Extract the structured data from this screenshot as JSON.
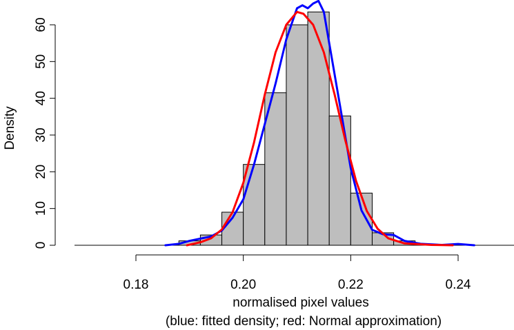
{
  "chart_data": {
    "type": "histogram",
    "xlabel": "normalised pixel values",
    "subtitle": "(blue: fitted density; red: Normal approximation)",
    "ylabel": "Density",
    "xlim": [
      0.17,
      0.25
    ],
    "ylim": [
      0,
      65
    ],
    "x_ticks": [
      {
        "value": 0.18,
        "label": "0.18"
      },
      {
        "value": 0.2,
        "label": "0.20"
      },
      {
        "value": 0.22,
        "label": "0.22"
      },
      {
        "value": 0.24,
        "label": "0.24"
      }
    ],
    "y_ticks": [
      {
        "value": 0,
        "label": "0"
      },
      {
        "value": 10,
        "label": "10"
      },
      {
        "value": 20,
        "label": "20"
      },
      {
        "value": 30,
        "label": "30"
      },
      {
        "value": 40,
        "label": "40"
      },
      {
        "value": 50,
        "label": "50"
      },
      {
        "value": 60,
        "label": "60"
      }
    ],
    "bins": [
      {
        "x0": 0.188,
        "x1": 0.192,
        "density": 1.2
      },
      {
        "x0": 0.192,
        "x1": 0.196,
        "density": 2.8
      },
      {
        "x0": 0.196,
        "x1": 0.2,
        "density": 9.0
      },
      {
        "x0": 0.2,
        "x1": 0.204,
        "density": 22.0
      },
      {
        "x0": 0.204,
        "x1": 0.208,
        "density": 41.5
      },
      {
        "x0": 0.208,
        "x1": 0.212,
        "density": 60.0
      },
      {
        "x0": 0.212,
        "x1": 0.216,
        "density": 63.5
      },
      {
        "x0": 0.216,
        "x1": 0.22,
        "density": 35.2
      },
      {
        "x0": 0.22,
        "x1": 0.224,
        "density": 14.2
      },
      {
        "x0": 0.224,
        "x1": 0.228,
        "density": 3.4
      },
      {
        "x0": 0.228,
        "x1": 0.232,
        "density": 1.2
      }
    ],
    "series": [
      {
        "kind": "fitted-density",
        "color": "#0000ff",
        "points": [
          [
            0.1855,
            0.0
          ],
          [
            0.188,
            0.4
          ],
          [
            0.19,
            1.2
          ],
          [
            0.192,
            1.8
          ],
          [
            0.194,
            2.4
          ],
          [
            0.196,
            4.0
          ],
          [
            0.198,
            7.5
          ],
          [
            0.2,
            12.5
          ],
          [
            0.202,
            22.0
          ],
          [
            0.204,
            33.0
          ],
          [
            0.206,
            44.0
          ],
          [
            0.208,
            56.0
          ],
          [
            0.21,
            64.5
          ],
          [
            0.211,
            65.3
          ],
          [
            0.212,
            64.5
          ],
          [
            0.213,
            65.8
          ],
          [
            0.214,
            66.5
          ],
          [
            0.215,
            63.5
          ],
          [
            0.216,
            55.0
          ],
          [
            0.218,
            38.0
          ],
          [
            0.22,
            21.0
          ],
          [
            0.222,
            9.5
          ],
          [
            0.224,
            4.2
          ],
          [
            0.226,
            3.0
          ],
          [
            0.228,
            2.8
          ],
          [
            0.23,
            1.2
          ],
          [
            0.233,
            0.4
          ],
          [
            0.237,
            0.1
          ],
          [
            0.24,
            0.35
          ],
          [
            0.243,
            0.0
          ]
        ]
      },
      {
        "kind": "normal-approximation",
        "color": "#ff0000",
        "points": [
          [
            0.1895,
            0.0
          ],
          [
            0.192,
            0.8
          ],
          [
            0.194,
            1.9
          ],
          [
            0.196,
            4.3
          ],
          [
            0.198,
            9.0
          ],
          [
            0.2,
            17.0
          ],
          [
            0.202,
            28.0
          ],
          [
            0.204,
            41.0
          ],
          [
            0.206,
            52.5
          ],
          [
            0.208,
            60.0
          ],
          [
            0.21,
            63.5
          ],
          [
            0.2112,
            63.0
          ],
          [
            0.213,
            60.0
          ],
          [
            0.215,
            52.5
          ],
          [
            0.217,
            41.0
          ],
          [
            0.219,
            28.5
          ],
          [
            0.221,
            17.5
          ],
          [
            0.223,
            9.3
          ],
          [
            0.225,
            4.5
          ],
          [
            0.227,
            1.9
          ],
          [
            0.23,
            0.5
          ],
          [
            0.235,
            0.1
          ],
          [
            0.239,
            0.0
          ]
        ]
      }
    ]
  }
}
